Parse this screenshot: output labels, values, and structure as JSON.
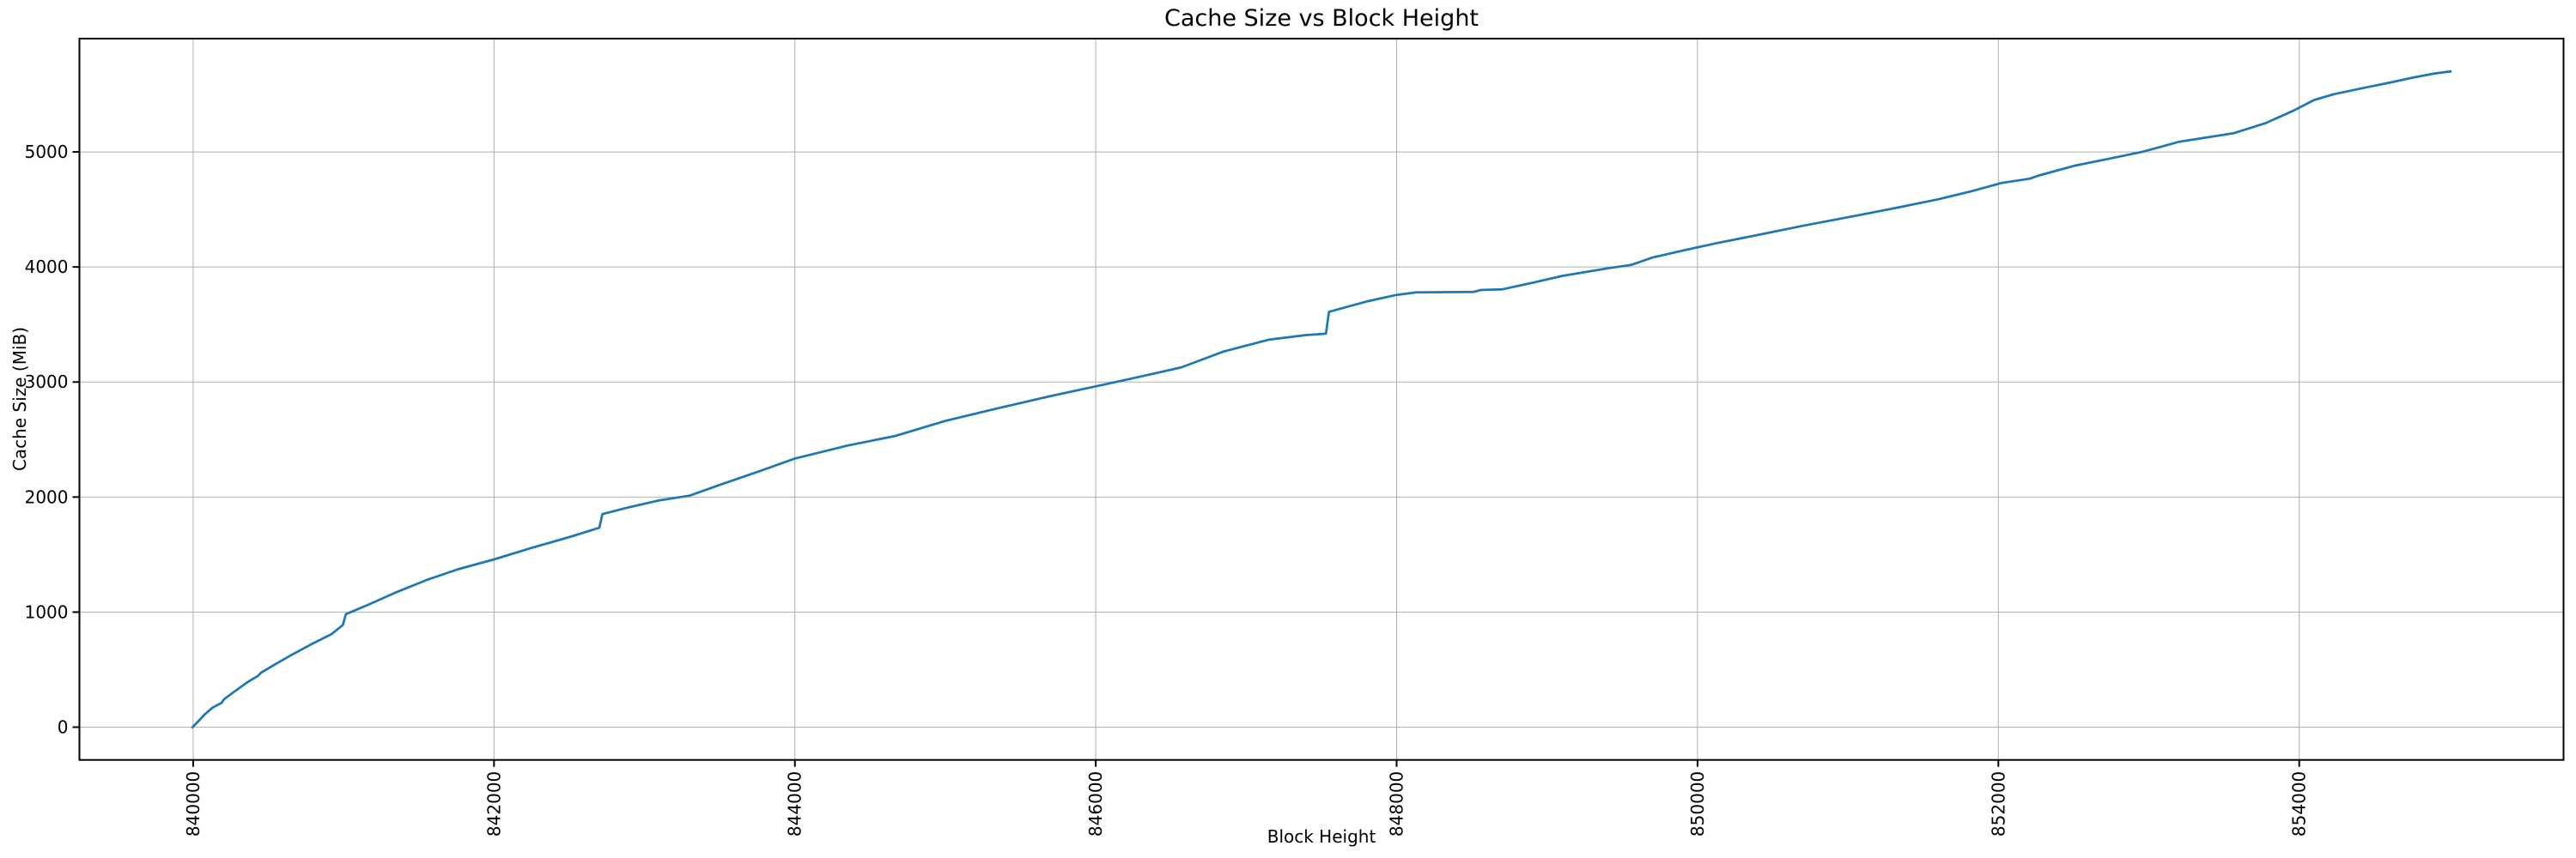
{
  "figure": {
    "background": "#ffffff"
  },
  "chart_data": {
    "type": "line",
    "title": "Cache Size vs Block Height",
    "xlabel": "Block Height",
    "ylabel": "Cache Size (MiB)",
    "grid": true,
    "legend": false,
    "x_tick_rotation_deg": 90,
    "xlim": [
      839244,
      855757
    ],
    "ylim": [
      -285,
      5985
    ],
    "x_ticks": [
      840000,
      842000,
      844000,
      846000,
      848000,
      850000,
      852000,
      854000
    ],
    "y_ticks": [
      0,
      1000,
      2000,
      3000,
      4000,
      5000
    ],
    "colors": {
      "line": "#1f77b4",
      "grid": "#b0b0b0",
      "spine": "#000000",
      "text": "#000000",
      "background": "#ffffff"
    },
    "series": [
      {
        "name": "Cache Size (MiB)",
        "points": [
          [
            839995,
            0
          ],
          [
            840030,
            45
          ],
          [
            840080,
            115
          ],
          [
            840130,
            170
          ],
          [
            840190,
            212
          ],
          [
            840205,
            242
          ],
          [
            840280,
            315
          ],
          [
            840360,
            390
          ],
          [
            840430,
            445
          ],
          [
            840450,
            472
          ],
          [
            840530,
            535
          ],
          [
            840650,
            625
          ],
          [
            840800,
            730
          ],
          [
            840920,
            808
          ],
          [
            840995,
            888
          ],
          [
            841015,
            982
          ],
          [
            841160,
            1062
          ],
          [
            841350,
            1172
          ],
          [
            841550,
            1278
          ],
          [
            841760,
            1372
          ],
          [
            842000,
            1458
          ],
          [
            842250,
            1558
          ],
          [
            842500,
            1652
          ],
          [
            842700,
            1733
          ],
          [
            842720,
            1852
          ],
          [
            842900,
            1912
          ],
          [
            843100,
            1972
          ],
          [
            843300,
            2012
          ],
          [
            843500,
            2105
          ],
          [
            843750,
            2218
          ],
          [
            844000,
            2335
          ],
          [
            844350,
            2448
          ],
          [
            844670,
            2532
          ],
          [
            845000,
            2662
          ],
          [
            845350,
            2772
          ],
          [
            845700,
            2878
          ],
          [
            846000,
            2962
          ],
          [
            846300,
            3048
          ],
          [
            846570,
            3128
          ],
          [
            846850,
            3265
          ],
          [
            847150,
            3368
          ],
          [
            847400,
            3408
          ],
          [
            847530,
            3420
          ],
          [
            847550,
            3610
          ],
          [
            847800,
            3700
          ],
          [
            848000,
            3757
          ],
          [
            848130,
            3780
          ],
          [
            848510,
            3783
          ],
          [
            848560,
            3800
          ],
          [
            848700,
            3805
          ],
          [
            848900,
            3862
          ],
          [
            849100,
            3922
          ],
          [
            849400,
            3988
          ],
          [
            849560,
            4018
          ],
          [
            849700,
            4082
          ],
          [
            849900,
            4142
          ],
          [
            850120,
            4205
          ],
          [
            850400,
            4278
          ],
          [
            850700,
            4358
          ],
          [
            851000,
            4432
          ],
          [
            851300,
            4508
          ],
          [
            851600,
            4588
          ],
          [
            851820,
            4658
          ],
          [
            852020,
            4730
          ],
          [
            852210,
            4768
          ],
          [
            852260,
            4792
          ],
          [
            852500,
            4878
          ],
          [
            852800,
            4958
          ],
          [
            852960,
            5002
          ],
          [
            853200,
            5088
          ],
          [
            853560,
            5162
          ],
          [
            853780,
            5252
          ],
          [
            853960,
            5358
          ],
          [
            854100,
            5452
          ],
          [
            854230,
            5502
          ],
          [
            854450,
            5562
          ],
          [
            854600,
            5602
          ],
          [
            854750,
            5645
          ],
          [
            854900,
            5682
          ],
          [
            855006,
            5700
          ]
        ]
      }
    ]
  }
}
